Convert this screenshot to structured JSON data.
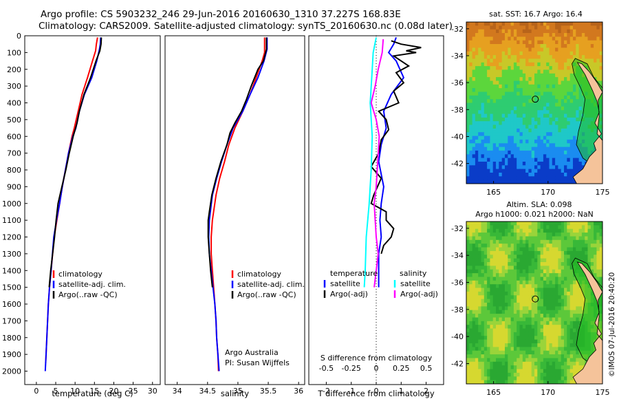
{
  "header": {
    "line1": "Argo profile: CS 5903232_246 29-Jun-2016 20160630_1310 37.227S 168.83E",
    "line2": "Climatology: CARS2009. Satellite-adjusted climatology: synTS_20160630.nc (0.08d later)"
  },
  "chart_data": [
    {
      "type": "line",
      "id": "temperature",
      "xlabel": "temperature (deg C)",
      "ylabel": "",
      "xlim": [
        -3,
        32
      ],
      "ylim": [
        2080,
        0
      ],
      "xticks": [
        "0",
        "5",
        "10",
        "15",
        "20",
        "25",
        "30"
      ],
      "xtick_values": [
        0,
        5,
        10,
        15,
        20,
        25,
        30
      ],
      "yticks": [
        "0",
        "100",
        "200",
        "300",
        "400",
        "500",
        "600",
        "700",
        "800",
        "900",
        "1000",
        "1100",
        "1200",
        "1300",
        "1400",
        "1500",
        "1600",
        "1700",
        "1800",
        "1900",
        "2000"
      ],
      "ytick_values": [
        0,
        100,
        200,
        300,
        400,
        500,
        600,
        700,
        800,
        900,
        1000,
        1100,
        1200,
        1300,
        1400,
        1500,
        1600,
        1700,
        1800,
        1900,
        2000
      ],
      "legend": [
        "climatology",
        "satellite-adj. clim.",
        "Argo(..raw -QC)"
      ],
      "legend_position": "lower-middle",
      "series": [
        {
          "name": "climatology",
          "color": "#ff0000",
          "points": [
            [
              15.8,
              10
            ],
            [
              15.5,
              50
            ],
            [
              15.3,
              90
            ],
            [
              14.5,
              150
            ],
            [
              13.2,
              250
            ],
            [
              11.8,
              350
            ],
            [
              10.8,
              450
            ],
            [
              9.8,
              550
            ],
            [
              9.2,
              600
            ],
            [
              8.3,
              700
            ],
            [
              7.5,
              800
            ],
            [
              6.7,
              900
            ],
            [
              6,
              1000
            ],
            [
              5.3,
              1100
            ],
            [
              4.6,
              1200
            ],
            [
              3.8,
              1400
            ],
            [
              3.4,
              1500
            ],
            [
              3.1,
              1600
            ],
            [
              2.9,
              1700
            ],
            [
              2.7,
              1800
            ],
            [
              2.5,
              1900
            ],
            [
              2.4,
              1950
            ]
          ]
        },
        {
          "name": "satellite-adj. clim.",
          "color": "#0000ff",
          "points": [
            [
              16.6,
              10
            ],
            [
              16.5,
              50
            ],
            [
              16.3,
              80
            ],
            [
              15.6,
              150
            ],
            [
              14.3,
              250
            ],
            [
              12.4,
              350
            ],
            [
              11.1,
              450
            ],
            [
              10.2,
              550
            ],
            [
              9.4,
              600
            ],
            [
              8.3,
              700
            ],
            [
              7.5,
              800
            ],
            [
              6.7,
              900
            ],
            [
              6,
              1000
            ],
            [
              5.2,
              1100
            ],
            [
              4.5,
              1200
            ],
            [
              3.8,
              1400
            ],
            [
              3.4,
              1500
            ],
            [
              3.1,
              1600
            ],
            [
              2.9,
              1700
            ],
            [
              2.7,
              1800
            ],
            [
              2.5,
              1900
            ],
            [
              2.3,
              2000
            ]
          ]
        },
        {
          "name": "Argo(..raw -QC)",
          "color": "#000000",
          "points": [
            [
              16.8,
              10
            ],
            [
              16.7,
              50
            ],
            [
              16.4,
              90
            ],
            [
              15.4,
              150
            ],
            [
              14,
              250
            ],
            [
              12.3,
              350
            ],
            [
              11.1,
              450
            ],
            [
              10.5,
              520
            ],
            [
              9.5,
              600
            ],
            [
              8.5,
              700
            ],
            [
              7.6,
              800
            ],
            [
              6.6,
              900
            ],
            [
              5.6,
              1000
            ],
            [
              5.1,
              1100
            ],
            [
              4.7,
              1200
            ],
            [
              4.2,
              1300
            ],
            [
              3.7,
              1400
            ],
            [
              3.3,
              1500
            ]
          ]
        }
      ]
    },
    {
      "type": "line",
      "id": "salinity",
      "xlabel": "salinity",
      "ylabel": "",
      "xlim": [
        33.8,
        36.1
      ],
      "ylim": [
        2080,
        0
      ],
      "xticks": [
        "34",
        "34.5",
        "35",
        "35.5",
        "36"
      ],
      "xtick_values": [
        34,
        34.5,
        35,
        35.5,
        36
      ],
      "legend": [
        "climatology",
        "satellite-adj. clim.",
        "Argo(..raw -QC)"
      ],
      "legend_position": "lower-middle",
      "annotations": [
        "Argo Australia",
        "PI: Susan Wijffels"
      ],
      "series": [
        {
          "name": "climatology",
          "color": "#ff0000",
          "points": [
            [
              35.44,
              10
            ],
            [
              35.44,
              100
            ],
            [
              35.4,
              150
            ],
            [
              35.3,
              250
            ],
            [
              35.2,
              350
            ],
            [
              35.08,
              450
            ],
            [
              34.95,
              550
            ],
            [
              34.85,
              650
            ],
            [
              34.78,
              750
            ],
            [
              34.7,
              850
            ],
            [
              34.64,
              950
            ],
            [
              34.58,
              1100
            ],
            [
              34.56,
              1200
            ],
            [
              34.56,
              1300
            ],
            [
              34.58,
              1400
            ],
            [
              34.6,
              1500
            ],
            [
              34.62,
              1600
            ],
            [
              34.64,
              1700
            ],
            [
              34.65,
              1800
            ],
            [
              34.67,
              1900
            ],
            [
              34.68,
              2000
            ]
          ]
        },
        {
          "name": "satellite-adj. clim.",
          "color": "#0000ff",
          "points": [
            [
              35.48,
              10
            ],
            [
              35.48,
              80
            ],
            [
              35.43,
              150
            ],
            [
              35.33,
              250
            ],
            [
              35.2,
              350
            ],
            [
              35.08,
              450
            ],
            [
              34.92,
              550
            ],
            [
              34.82,
              650
            ],
            [
              34.73,
              750
            ],
            [
              34.65,
              850
            ],
            [
              34.58,
              950
            ],
            [
              34.53,
              1100
            ],
            [
              34.52,
              1200
            ],
            [
              34.53,
              1300
            ],
            [
              34.56,
              1400
            ],
            [
              34.59,
              1500
            ],
            [
              34.62,
              1600
            ],
            [
              34.64,
              1700
            ],
            [
              34.65,
              1800
            ],
            [
              34.67,
              1900
            ],
            [
              34.69,
              2000
            ]
          ]
        },
        {
          "name": "Argo(..raw -QC)",
          "color": "#000000",
          "points": [
            [
              35.47,
              10
            ],
            [
              35.47,
              80
            ],
            [
              35.42,
              150
            ],
            [
              35.33,
              200
            ],
            [
              35.22,
              300
            ],
            [
              35.14,
              380
            ],
            [
              35.06,
              450
            ],
            [
              34.95,
              520
            ],
            [
              34.87,
              580
            ],
            [
              34.82,
              650
            ],
            [
              34.72,
              750
            ],
            [
              34.64,
              850
            ],
            [
              34.57,
              950
            ],
            [
              34.53,
              1050
            ],
            [
              34.51,
              1100
            ],
            [
              34.51,
              1200
            ],
            [
              34.53,
              1300
            ],
            [
              34.55,
              1400
            ],
            [
              34.58,
              1500
            ]
          ]
        }
      ]
    },
    {
      "type": "line",
      "id": "difference",
      "xlabel": "T difference from climatology",
      "xlabel_top": "S difference from climatology",
      "xlim": [
        -2.7,
        2.7
      ],
      "ylim": [
        2080,
        0
      ],
      "xticks": [
        "-2",
        "-1",
        "0",
        "1",
        "2"
      ],
      "xtick_values": [
        -2,
        -1,
        0,
        1,
        2
      ],
      "s_xticks": [
        "-0.5",
        "-0.25",
        "0",
        "0.25",
        "0.5"
      ],
      "s_xtick_values": [
        -0.5,
        -0.25,
        0,
        0.25,
        0.5
      ],
      "legend_headers": [
        "temperature",
        "salinity"
      ],
      "legend": [
        "satellite",
        "Argo(-adj)",
        "satellite",
        "Argo(-adj)"
      ],
      "legend_position": "lower-middle",
      "series": [
        {
          "name": "temperature satellite",
          "color": "#0000ff",
          "points": [
            [
              0.8,
              10
            ],
            [
              0.7,
              50
            ],
            [
              0.5,
              100
            ],
            [
              0.8,
              150
            ],
            [
              1.1,
              250
            ],
            [
              0.6,
              350
            ],
            [
              0.3,
              450
            ],
            [
              0.4,
              550
            ],
            [
              0.2,
              650
            ],
            [
              0.1,
              750
            ],
            [
              0.3,
              900
            ],
            [
              0.2,
              1000
            ],
            [
              0.15,
              1100
            ],
            [
              0.2,
              1200
            ],
            [
              0.1,
              1300
            ],
            [
              0.1,
              1500
            ]
          ]
        },
        {
          "name": "temperature Argo(-adj)",
          "color": "#000000",
          "points": [
            [
              0.6,
              30
            ],
            [
              1.0,
              50
            ],
            [
              1.8,
              70
            ],
            [
              1.2,
              90
            ],
            [
              1.6,
              100
            ],
            [
              0.7,
              120
            ],
            [
              1.3,
              180
            ],
            [
              0.8,
              220
            ],
            [
              1.1,
              280
            ],
            [
              0.7,
              330
            ],
            [
              0.9,
              400
            ],
            [
              0.1,
              450
            ],
            [
              0.4,
              500
            ],
            [
              0.5,
              560
            ],
            [
              0.2,
              620
            ],
            [
              0.1,
              700
            ],
            [
              -0.2,
              780
            ],
            [
              0.2,
              850
            ],
            [
              -0.1,
              950
            ],
            [
              -0.2,
              1000
            ],
            [
              0.4,
              1050
            ],
            [
              0.4,
              1100
            ],
            [
              0.7,
              1150
            ],
            [
              0.6,
              1200
            ],
            [
              0.3,
              1250
            ],
            [
              0.2,
              1300
            ]
          ]
        },
        {
          "name": "salinity satellite",
          "color": "#00ffff",
          "points": [
            [
              0,
              10
            ],
            [
              -0.03,
              100
            ],
            [
              -0.04,
              200
            ],
            [
              -0.06,
              400
            ],
            [
              -0.04,
              600
            ],
            [
              -0.05,
              800
            ],
            [
              -0.07,
              1000
            ],
            [
              -0.1,
              1200
            ],
            [
              -0.11,
              1400
            ],
            [
              -0.12,
              1500
            ]
          ]
        },
        {
          "name": "salinity Argo(-adj)",
          "color": "#ff00ff",
          "points": [
            [
              0.07,
              20
            ],
            [
              0.06,
              100
            ],
            [
              0.02,
              200
            ],
            [
              -0.01,
              300
            ],
            [
              -0.05,
              400
            ],
            [
              0,
              500
            ],
            [
              0.03,
              600
            ],
            [
              0.02,
              700
            ],
            [
              0.01,
              800
            ],
            [
              0,
              900
            ],
            [
              -0.02,
              1000
            ],
            [
              -0.01,
              1100
            ],
            [
              0,
              1200
            ],
            [
              0.02,
              1300
            ],
            [
              0,
              1400
            ],
            [
              -0.02,
              1500
            ]
          ]
        }
      ]
    },
    {
      "type": "heatmap",
      "id": "sst_map",
      "title": "sat. SST: 16.7  Argo: 16.4",
      "xlim": [
        162.5,
        175
      ],
      "ylim": [
        -43.5,
        -31.5
      ],
      "xticks": [
        "165",
        "170",
        "175"
      ],
      "xtick_values": [
        165,
        170,
        175
      ],
      "yticks": [
        "-32",
        "-34",
        "-36",
        "-38",
        "-40",
        "-42"
      ],
      "ytick_values": [
        -32,
        -34,
        -36,
        -38,
        -40,
        -42
      ],
      "marker": {
        "lon": 168.83,
        "lat": -37.227
      }
    },
    {
      "type": "heatmap",
      "id": "sla_map",
      "title_lines": [
        "Altim. SLA: 0.098",
        "Argo h1000: 0.021  h2000: NaN"
      ],
      "xlim": [
        162.5,
        175
      ],
      "ylim": [
        -43.5,
        -31.5
      ],
      "xticks": [
        "165",
        "170",
        "175"
      ],
      "xtick_values": [
        165,
        170,
        175
      ],
      "yticks": [
        "-32",
        "-34",
        "-36",
        "-38",
        "-40",
        "-42"
      ],
      "ytick_values": [
        -32,
        -34,
        -36,
        -38,
        -40,
        -42
      ],
      "marker": {
        "lon": 168.83,
        "lat": -37.227
      }
    }
  ],
  "watermark": "©IMOS 07-Jul-2016 20:40:20"
}
